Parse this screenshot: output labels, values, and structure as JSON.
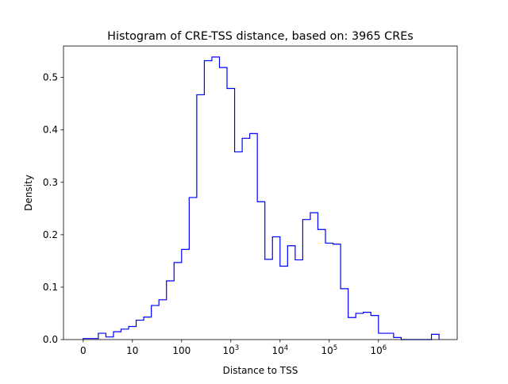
{
  "chart_data": {
    "type": "histogram",
    "title": "Histogram of CRE-TSS distance, based on: 3965 CREs",
    "xlabel": "Distance to TSS",
    "ylabel": "Density",
    "xlim": [
      -0.4,
      7.6
    ],
    "ylim": [
      0,
      0.56
    ],
    "grid": false,
    "legend": "none",
    "x_scale": "symlog",
    "series_color": "#0000ff",
    "x_ticks": [
      {
        "value": 0,
        "label": "0"
      },
      {
        "value": 1,
        "label": "10"
      },
      {
        "value": 2,
        "label": "100"
      },
      {
        "value": 3,
        "base": "10",
        "exp": "3"
      },
      {
        "value": 4,
        "base": "10",
        "exp": "4"
      },
      {
        "value": 5,
        "base": "10",
        "exp": "5"
      },
      {
        "value": 6,
        "base": "10",
        "exp": "6"
      }
    ],
    "y_ticks": [
      {
        "value": 0.0,
        "label": "0.0"
      },
      {
        "value": 0.1,
        "label": "0.1"
      },
      {
        "value": 0.2,
        "label": "0.2"
      },
      {
        "value": 0.3,
        "label": "0.3"
      },
      {
        "value": 0.4,
        "label": "0.4"
      },
      {
        "value": 0.5,
        "label": "0.5"
      }
    ],
    "bin_edges": [
      0,
      0.1538,
      0.3077,
      0.4615,
      0.6154,
      0.7692,
      0.9231,
      1.0769,
      1.2308,
      1.3846,
      1.5385,
      1.6923,
      1.8462,
      2.0,
      2.1538,
      2.3077,
      2.4615,
      2.6154,
      2.7692,
      2.9231,
      3.0769,
      3.2308,
      3.3846,
      3.5385,
      3.6923,
      3.8462,
      4.0,
      4.1538,
      4.3077,
      4.4615,
      4.6154,
      4.7692,
      4.9231,
      5.0769,
      5.2308,
      5.3846,
      5.5385,
      5.6923,
      5.8462,
      6.0,
      6.1538,
      6.3077,
      6.4615,
      6.6154,
      6.7692,
      6.9231,
      7.0769,
      7.2308
    ],
    "densities": [
      0.002,
      0.002,
      0.012,
      0.005,
      0.015,
      0.02,
      0.025,
      0.037,
      0.043,
      0.065,
      0.076,
      0.112,
      0.147,
      0.172,
      0.271,
      0.467,
      0.532,
      0.539,
      0.519,
      0.479,
      0.358,
      0.384,
      0.393,
      0.263,
      0.153,
      0.196,
      0.14,
      0.179,
      0.152,
      0.229,
      0.242,
      0.21,
      0.184,
      0.182,
      0.097,
      0.042,
      0.05,
      0.052,
      0.046,
      0.012,
      0.012,
      0.004,
      0.0,
      0.0,
      0.0,
      0.0,
      0.01
    ]
  }
}
